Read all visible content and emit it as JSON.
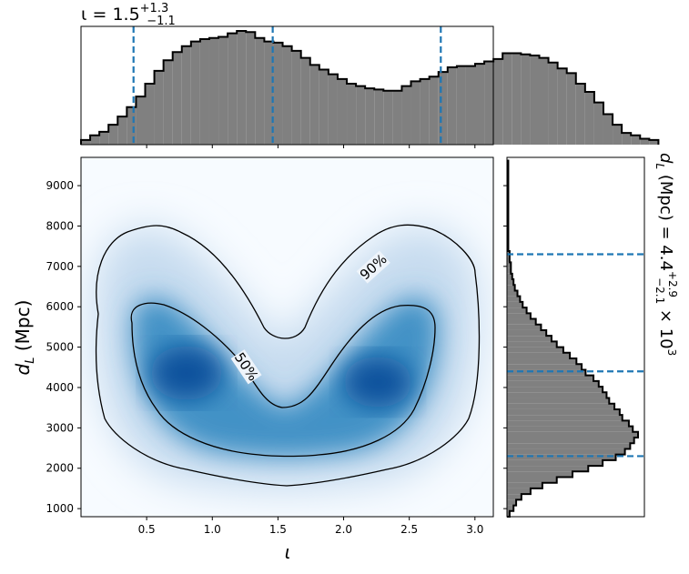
{
  "chart_data": [
    {
      "type": "histogram",
      "panel": "top-marginal",
      "title": {
        "symbol": "ι",
        "equals": " = ",
        "value": "1.5",
        "upper": "+1.3",
        "lower": "−1.1"
      },
      "x_bin_edges_start": 0.0,
      "x_bin_width": 0.0698,
      "counts": [
        0.04,
        0.08,
        0.11,
        0.17,
        0.24,
        0.32,
        0.41,
        0.52,
        0.63,
        0.72,
        0.79,
        0.84,
        0.88,
        0.9,
        0.91,
        0.92,
        0.95,
        0.97,
        0.96,
        0.91,
        0.88,
        0.87,
        0.84,
        0.8,
        0.74,
        0.68,
        0.64,
        0.6,
        0.56,
        0.52,
        0.5,
        0.48,
        0.47,
        0.46,
        0.46,
        0.5,
        0.54,
        0.56,
        0.58,
        0.62,
        0.66,
        0.67,
        0.67,
        0.69,
        0.71,
        0.73,
        0.78,
        0.78,
        0.77,
        0.76,
        0.74,
        0.7,
        0.65,
        0.61,
        0.52,
        0.45,
        0.36,
        0.26,
        0.17,
        0.1,
        0.08,
        0.05,
        0.04
      ],
      "quantiles": [
        0.4,
        1.46,
        2.74
      ],
      "xlim": [
        0.0,
        3.14
      ],
      "color": "#808080",
      "line_color": "#1f77b4"
    },
    {
      "type": "heatmap",
      "panel": "joint",
      "xlabel": "ι",
      "ylabel": "d_L (Mpc)",
      "xlim": [
        0.0,
        3.14
      ],
      "ylim": [
        800,
        9700
      ],
      "x_ticks": [
        0.5,
        1.0,
        1.5,
        2.0,
        2.5,
        3.0
      ],
      "x_tick_labels": [
        "0.5",
        "1.0",
        "1.5",
        "2.0",
        "2.5",
        "3.0"
      ],
      "y_ticks": [
        1000,
        2000,
        3000,
        4000,
        5000,
        6000,
        7000,
        8000,
        9000
      ],
      "y_tick_labels": [
        "1000",
        "2000",
        "3000",
        "4000",
        "5000",
        "6000",
        "7000",
        "8000",
        "9000"
      ],
      "colormap": "Blues",
      "modes": [
        {
          "x": 0.85,
          "y": 4400
        },
        {
          "x": 2.3,
          "y": 4300
        }
      ],
      "contours": [
        {
          "label": "90%",
          "label_x": 2.25,
          "label_y": 6900
        },
        {
          "label": "50%",
          "label_x": 1.23,
          "label_y": 4450
        }
      ]
    },
    {
      "type": "histogram",
      "panel": "right-marginal",
      "orientation": "horizontal",
      "label": {
        "symbol": "d_L",
        "unit": " (Mpc) = ",
        "value": "4.4",
        "upper": "+2.9",
        "lower": "−2.1",
        "times": " × 10",
        "exponent": "3"
      },
      "y_bin_edges_start": 800,
      "y_bin_width": 140,
      "counts": [
        0.02,
        0.05,
        0.07,
        0.11,
        0.18,
        0.27,
        0.38,
        0.5,
        0.62,
        0.73,
        0.83,
        0.9,
        0.94,
        0.97,
        1.0,
        0.96,
        0.93,
        0.88,
        0.86,
        0.82,
        0.78,
        0.76,
        0.73,
        0.7,
        0.66,
        0.6,
        0.57,
        0.53,
        0.48,
        0.43,
        0.38,
        0.34,
        0.3,
        0.26,
        0.22,
        0.18,
        0.15,
        0.12,
        0.1,
        0.08,
        0.06,
        0.05,
        0.04,
        0.03,
        0.03,
        0.02,
        0.02,
        0.01,
        0.01,
        0.01,
        0.01,
        0.01,
        0.01,
        0.01,
        0.01,
        0.01,
        0.01,
        0.01,
        0.01,
        0.01,
        0.01,
        0.01,
        0.01
      ],
      "quantiles": [
        2300,
        4400,
        7300
      ],
      "ylim": [
        800,
        9700
      ],
      "color": "#808080",
      "line_color": "#1f77b4"
    }
  ]
}
